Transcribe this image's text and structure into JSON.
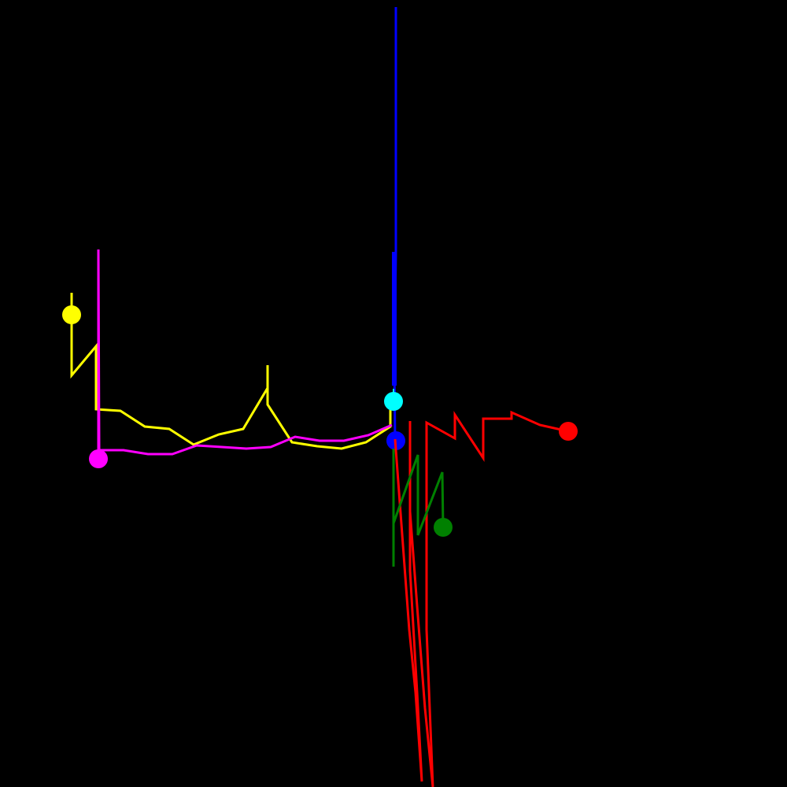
{
  "background": "#000000",
  "traces": [
    {
      "id": "blue",
      "color": "#0000ff"
    },
    {
      "id": "yellow",
      "color": "#ffff00"
    },
    {
      "id": "magenta",
      "color": "#ff00ff"
    },
    {
      "id": "red",
      "color": "#ff0000"
    },
    {
      "id": "green",
      "color": "#008000"
    },
    {
      "id": "cyan",
      "color": "#00ffff"
    }
  ]
}
